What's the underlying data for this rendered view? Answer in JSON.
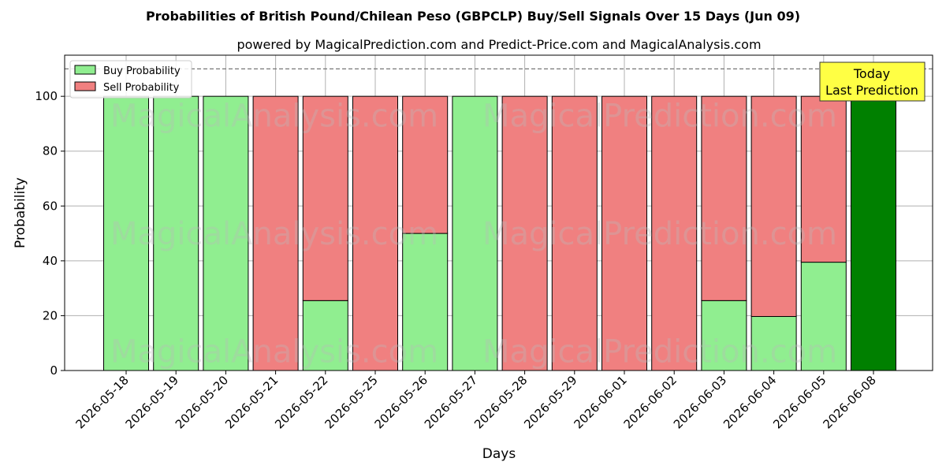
{
  "chart_data": {
    "type": "bar",
    "stacked": true,
    "title": "Probabilities of British Pound/Chilean Peso (GBPCLP) Buy/Sell Signals Over 15 Days (Jun 09)",
    "subtitle": "powered by MagicalPrediction.com and Predict-Price.com and MagicalAnalysis.com",
    "xlabel": "Days",
    "ylabel": "Probability",
    "ylim": [
      0,
      115
    ],
    "yticks": [
      0,
      20,
      40,
      60,
      80,
      100
    ],
    "grid": true,
    "legend_placement": "top-left",
    "reference_line": 110,
    "categories": [
      "2026-05-18",
      "2026-05-19",
      "2026-05-20",
      "2026-05-21",
      "2026-05-22",
      "2026-05-25",
      "2026-05-26",
      "2026-05-27",
      "2026-05-28",
      "2026-05-29",
      "2026-06-01",
      "2026-06-02",
      "2026-06-03",
      "2026-06-04",
      "2026-06-05",
      "2026-06-08"
    ],
    "series": [
      {
        "name": "Buy Probability",
        "color": "#90ee90",
        "values": [
          100,
          100,
          100,
          0,
          25.5,
          0,
          50,
          100,
          0,
          0,
          0,
          0,
          25.5,
          19.7,
          39.5,
          100
        ]
      },
      {
        "name": "Sell Probability",
        "color": "#f08080",
        "values": [
          0,
          0,
          0,
          100,
          74.5,
          100,
          50,
          0,
          100,
          100,
          100,
          100,
          74.5,
          80.3,
          60.5,
          0
        ]
      }
    ],
    "highlight": {
      "index": 15,
      "color": "#008000"
    },
    "annotation": {
      "lines": [
        "Today",
        "Last Prediction"
      ],
      "color": "#ffff44"
    },
    "watermarks": [
      "MagicalAnalysis.com",
      "MagicalPrediction.com"
    ]
  }
}
